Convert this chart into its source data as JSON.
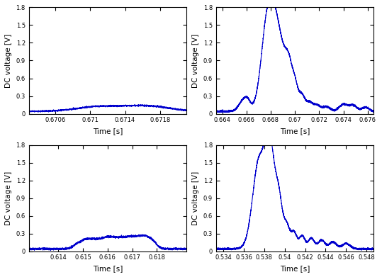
{
  "subplots": [
    {
      "xlim": [
        0.6703,
        0.6721
      ],
      "xticks": [
        0.6706,
        0.671,
        0.6714,
        0.6718
      ],
      "xtick_labels": [
        "0.6706",
        "0.671",
        "0.6714",
        "0.6718"
      ],
      "ylim": [
        0,
        1.8
      ],
      "yticks": [
        0,
        0.3,
        0.6,
        0.9,
        1.2,
        1.5,
        1.8
      ]
    },
    {
      "xlim": [
        0.6635,
        0.6765
      ],
      "xticks": [
        0.664,
        0.666,
        0.668,
        0.67,
        0.672,
        0.674,
        0.676
      ],
      "xtick_labels": [
        "0.664",
        "0.666",
        "0.668",
        "0.67",
        "0.672",
        "0.674",
        "0.676"
      ],
      "ylim": [
        0,
        1.8
      ],
      "yticks": [
        0,
        0.3,
        0.6,
        0.9,
        1.2,
        1.5,
        1.8
      ]
    },
    {
      "xlim": [
        0.6128,
        0.6192
      ],
      "xticks": [
        0.614,
        0.615,
        0.616,
        0.617,
        0.618
      ],
      "xtick_labels": [
        "0.614",
        "0.615",
        "0.616",
        "0.617",
        "0.618"
      ],
      "ylim": [
        0,
        1.8
      ],
      "yticks": [
        0,
        0.3,
        0.6,
        0.9,
        1.2,
        1.5,
        1.8
      ]
    },
    {
      "xlim": [
        0.5333,
        0.5487
      ],
      "xticks": [
        0.534,
        0.536,
        0.538,
        0.54,
        0.542,
        0.544,
        0.546,
        0.548
      ],
      "xtick_labels": [
        "0.534",
        "0.536",
        "0.538",
        "0.54",
        "0.542",
        "0.544",
        "0.546",
        "0.548"
      ],
      "ylim": [
        0,
        1.8
      ],
      "yticks": [
        0,
        0.3,
        0.6,
        0.9,
        1.2,
        1.5,
        1.8
      ]
    }
  ],
  "line_color": "#0000cd",
  "line_width": 0.8,
  "xlabel": "Time [s]",
  "ylabel": "DC voltage [V]",
  "background_color": "#ffffff",
  "font_size": 7.5
}
